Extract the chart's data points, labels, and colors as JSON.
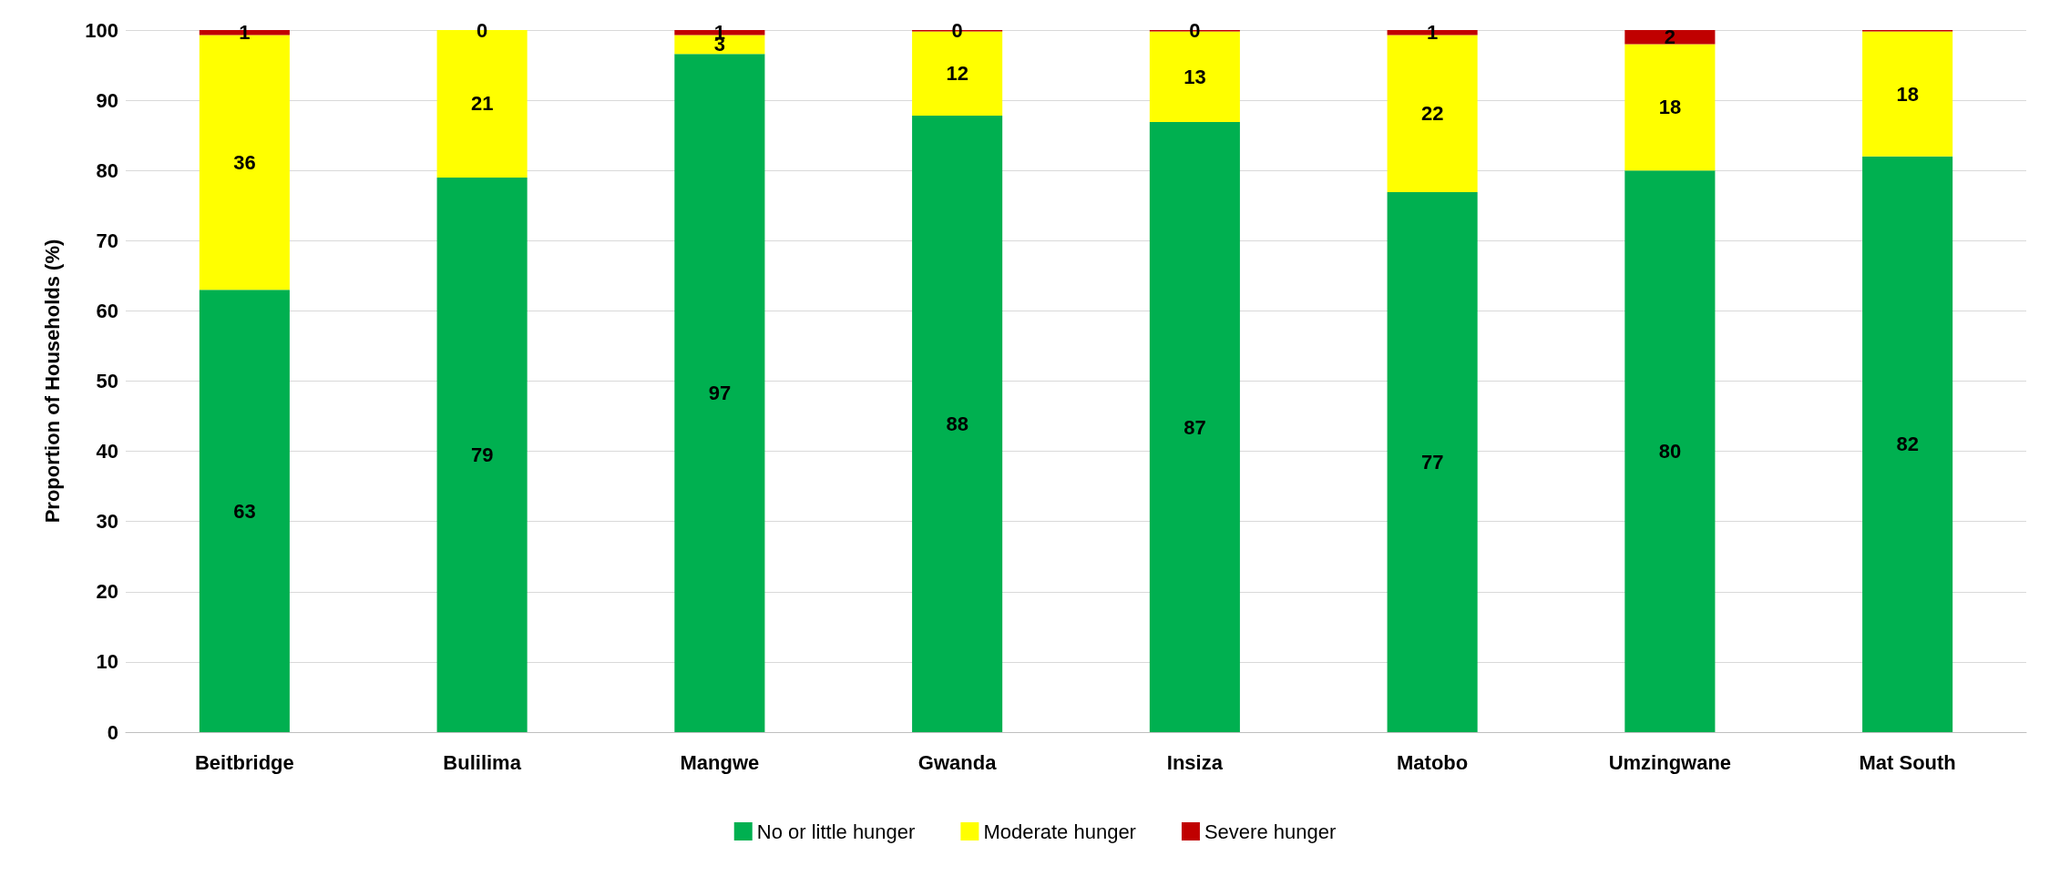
{
  "chart_data": {
    "type": "bar",
    "stacked": true,
    "ylabel": "Proportion of Households (%)",
    "categories": [
      "Beitbridge",
      "Bulilima",
      "Mangwe",
      "Gwanda",
      "Insiza",
      "Matobo",
      "Umzingwane",
      "Mat South"
    ],
    "series": [
      {
        "name": "No or little hunger",
        "color": "#00b050",
        "values": [
          63,
          79,
          96.6,
          87.8,
          86.9,
          76.9,
          80,
          82
        ],
        "value_labels": [
          "63",
          "79",
          "97",
          "88",
          "87",
          "77",
          "80",
          "82"
        ]
      },
      {
        "name": "Moderate hunger",
        "color": "#ffff00",
        "values": [
          36.3,
          21,
          2.7,
          12,
          12.9,
          22.4,
          18,
          17.8
        ],
        "value_labels": [
          "36",
          "21",
          "3",
          "12",
          "13",
          "22",
          "18",
          "18"
        ]
      },
      {
        "name": "Severe hunger",
        "color": "#c00000",
        "values": [
          0.7,
          0,
          0.7,
          0.2,
          0.2,
          0.7,
          2,
          0.2
        ],
        "value_labels": [
          "1",
          "0",
          "1",
          "0",
          "0",
          "1",
          "2",
          null
        ]
      }
    ],
    "ylim": [
      0,
      100
    ],
    "yticks": [
      0,
      10,
      20,
      30,
      40,
      50,
      60,
      70,
      80,
      90,
      100
    ],
    "grid": "y",
    "legend": "bottom"
  }
}
